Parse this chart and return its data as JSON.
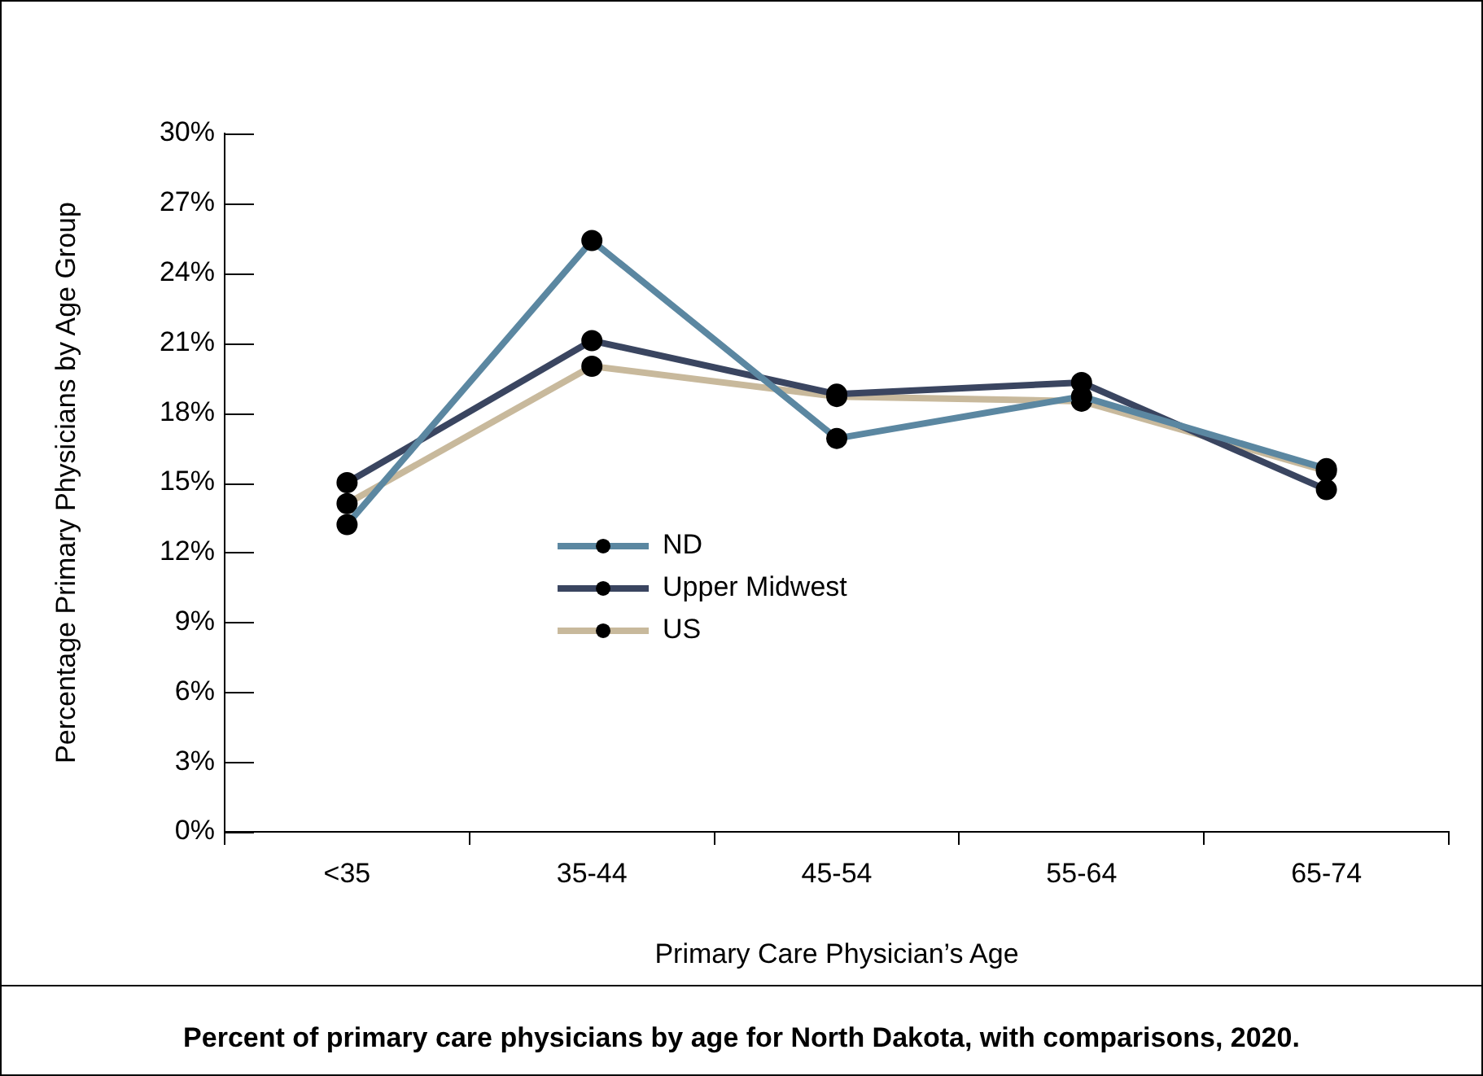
{
  "chart_data": {
    "type": "line",
    "xlabel": "Primary Care Physician’s Age",
    "ylabel": "Percentage Primary Physicians by Age Group",
    "annotations": [
      "Percent of primary care physicians by age for North Dakota, with comparisons, 2020."
    ],
    "categories": [
      "<35",
      "35-44",
      "45-54",
      "55-64",
      "65-74"
    ],
    "series": [
      {
        "name": "ND",
        "color": "#5b87a1",
        "values": [
          13.2,
          25.4,
          16.9,
          18.7,
          15.6
        ]
      },
      {
        "name": "Upper Midwest",
        "color": "#3a4560",
        "values": [
          15.0,
          21.1,
          18.8,
          19.3,
          14.7
        ]
      },
      {
        "name": "US",
        "color": "#c8b99c",
        "values": [
          14.1,
          20.0,
          18.7,
          18.5,
          15.5
        ]
      }
    ],
    "ylim": [
      0,
      30
    ],
    "yticks": [
      {
        "value": 0,
        "label": "0%"
      },
      {
        "value": 3,
        "label": "3%"
      },
      {
        "value": 6,
        "label": "6%"
      },
      {
        "value": 9,
        "label": "9%"
      },
      {
        "value": 12,
        "label": "12%"
      },
      {
        "value": 15,
        "label": "15%"
      },
      {
        "value": 18,
        "label": "18%"
      },
      {
        "value": 21,
        "label": "21%"
      },
      {
        "value": 24,
        "label": "24%"
      },
      {
        "value": 27,
        "label": "27%"
      },
      {
        "value": 30,
        "label": "30%"
      }
    ],
    "grid": false,
    "legend": "center left",
    "marker": "circle"
  }
}
